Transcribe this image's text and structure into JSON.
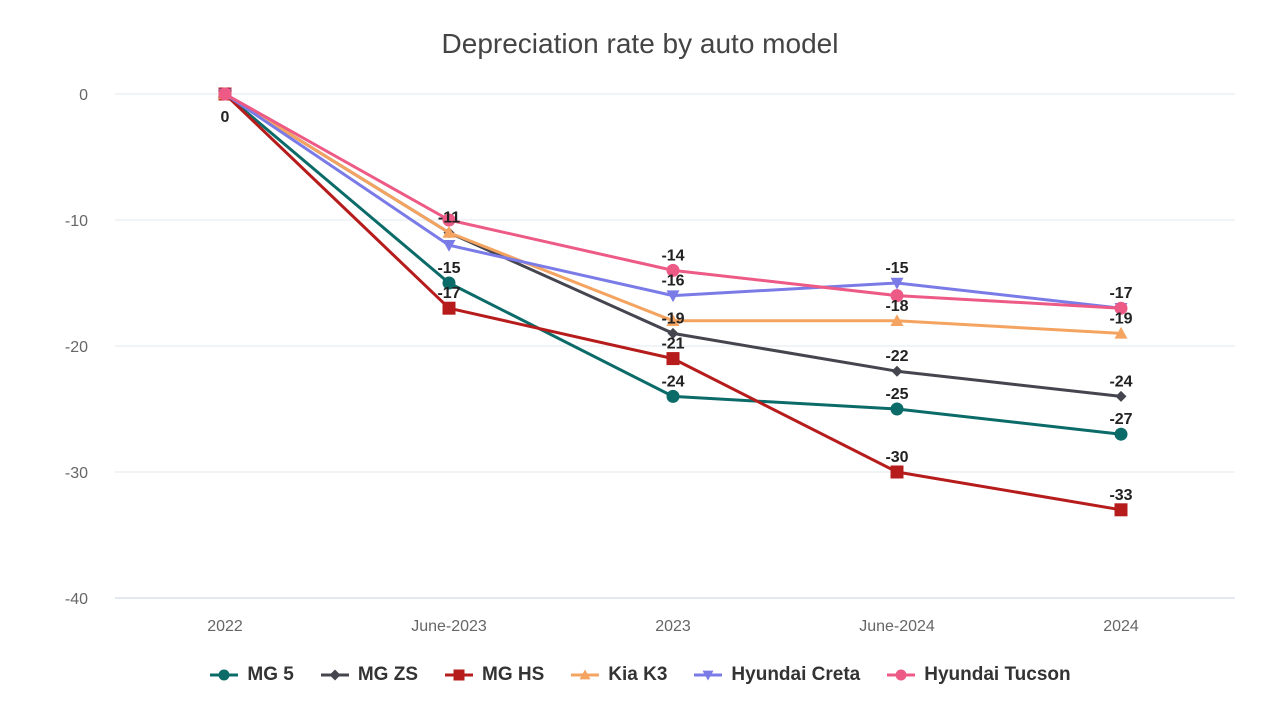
{
  "chart_data": {
    "type": "line",
    "title": "Depreciation rate by auto model",
    "xlabel": "",
    "ylabel": "",
    "categories": [
      "2022",
      "June-2023",
      "2023",
      "June-2024",
      "2024"
    ],
    "ylim": [
      -40,
      0
    ],
    "yticks": [
      0,
      -10,
      -20,
      -30,
      -40
    ],
    "grid": true,
    "legend_position": "bottom",
    "series": [
      {
        "name": "MG 5",
        "color": "#0b6b68",
        "marker": "circle",
        "values": [
          0,
          -15,
          -24,
          -25,
          -27
        ]
      },
      {
        "name": "MG ZS",
        "color": "#45454f",
        "marker": "diamond",
        "values": [
          0,
          -11,
          -19,
          -22,
          -24
        ]
      },
      {
        "name": "MG HS",
        "color": "#b71c1c",
        "marker": "square",
        "values": [
          0,
          -17,
          -21,
          -30,
          -33
        ]
      },
      {
        "name": "Kia K3",
        "color": "#f4a460",
        "marker": "triangle-up",
        "values": [
          0,
          -11,
          -18,
          -18,
          -19
        ]
      },
      {
        "name": "Hyundai Creta",
        "color": "#7b7be8",
        "marker": "triangle-down",
        "values": [
          0,
          -12,
          -16,
          -15,
          -17
        ]
      },
      {
        "name": "Hyundai Tucson",
        "color": "#ee5a86",
        "marker": "circle",
        "values": [
          0,
          -10,
          -14,
          -16,
          -17
        ]
      }
    ],
    "data_labels": [
      {
        "series": "MG 5",
        "index": 0,
        "text": "0"
      },
      {
        "series": "MG ZS",
        "index": 1,
        "text": "-11"
      },
      {
        "series": "MG 5",
        "index": 1,
        "text": "-15"
      },
      {
        "series": "MG HS",
        "index": 1,
        "text": "-17"
      },
      {
        "series": "Hyundai Tucson",
        "index": 2,
        "text": "-14"
      },
      {
        "series": "Hyundai Creta",
        "index": 2,
        "text": "-16"
      },
      {
        "series": "MG ZS",
        "index": 2,
        "text": "-19"
      },
      {
        "series": "MG HS",
        "index": 2,
        "text": "-21"
      },
      {
        "series": "MG 5",
        "index": 2,
        "text": "-24"
      },
      {
        "series": "Hyundai Creta",
        "index": 3,
        "text": "-15"
      },
      {
        "series": "Kia K3",
        "index": 3,
        "text": "-18"
      },
      {
        "series": "MG ZS",
        "index": 3,
        "text": "-22"
      },
      {
        "series": "MG 5",
        "index": 3,
        "text": "-25"
      },
      {
        "series": "MG HS",
        "index": 3,
        "text": "-30"
      },
      {
        "series": "Hyundai Tucson",
        "index": 4,
        "text": "-17"
      },
      {
        "series": "Kia K3",
        "index": 4,
        "text": "-19"
      },
      {
        "series": "MG ZS",
        "index": 4,
        "text": "-24"
      },
      {
        "series": "MG 5",
        "index": 4,
        "text": "-27"
      },
      {
        "series": "MG HS",
        "index": 4,
        "text": "-33"
      }
    ]
  }
}
